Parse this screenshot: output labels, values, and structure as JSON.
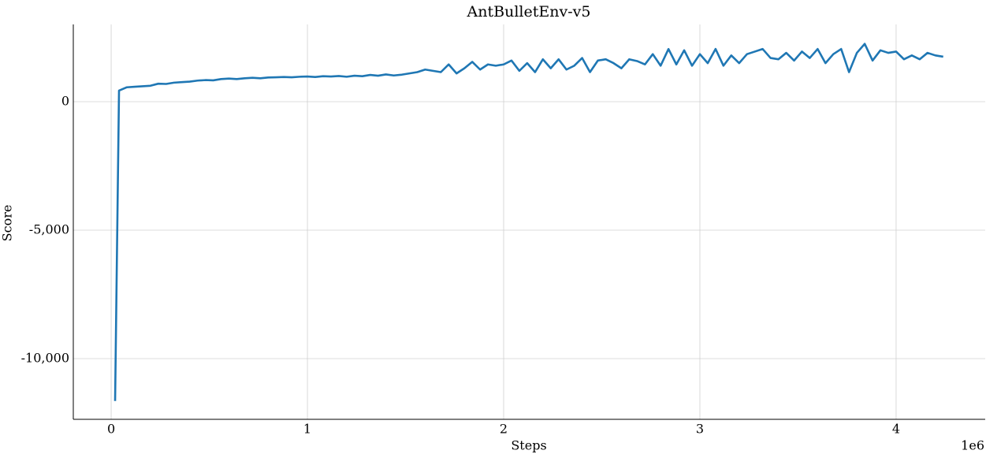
{
  "chart_data": {
    "type": "line",
    "title": "AntBulletEnv-v5",
    "x_label": "Steps",
    "y_label": "Score",
    "x_offset_label": "1e6",
    "x": [
      0.02,
      0.04,
      0.08,
      0.12,
      0.16,
      0.2,
      0.24,
      0.28,
      0.32,
      0.36,
      0.4,
      0.44,
      0.48,
      0.52,
      0.56,
      0.6,
      0.64,
      0.68,
      0.72,
      0.76,
      0.8,
      0.84,
      0.88,
      0.92,
      0.96,
      1.0,
      1.04,
      1.08,
      1.12,
      1.16,
      1.2,
      1.24,
      1.28,
      1.32,
      1.36,
      1.4,
      1.44,
      1.48,
      1.52,
      1.56,
      1.6,
      1.64,
      1.68,
      1.72,
      1.76,
      1.8,
      1.84,
      1.88,
      1.92,
      1.96,
      2.0,
      2.04,
      2.08,
      2.12,
      2.16,
      2.2,
      2.24,
      2.28,
      2.32,
      2.36,
      2.4,
      2.44,
      2.48,
      2.52,
      2.56,
      2.6,
      2.64,
      2.68,
      2.72,
      2.76,
      2.8,
      2.84,
      2.88,
      2.92,
      2.96,
      3.0,
      3.04,
      3.08,
      3.12,
      3.16,
      3.2,
      3.24,
      3.28,
      3.32,
      3.36,
      3.4,
      3.44,
      3.48,
      3.52,
      3.56,
      3.6,
      3.64,
      3.68,
      3.72,
      3.76,
      3.8,
      3.84,
      3.88,
      3.92,
      3.96,
      4.0,
      4.04,
      4.08,
      4.12,
      4.16,
      4.2,
      4.24
    ],
    "values": [
      -11650,
      430,
      560,
      580,
      600,
      620,
      700,
      690,
      740,
      760,
      780,
      820,
      840,
      830,
      880,
      900,
      880,
      910,
      930,
      910,
      940,
      950,
      960,
      950,
      970,
      980,
      960,
      990,
      980,
      1000,
      970,
      1010,
      990,
      1040,
      1010,
      1060,
      1020,
      1050,
      1100,
      1150,
      1250,
      1200,
      1150,
      1450,
      1100,
      1300,
      1550,
      1250,
      1450,
      1400,
      1450,
      1600,
      1200,
      1500,
      1150,
      1650,
      1300,
      1650,
      1250,
      1400,
      1700,
      1150,
      1600,
      1650,
      1500,
      1300,
      1650,
      1580,
      1450,
      1850,
      1400,
      2050,
      1450,
      2000,
      1400,
      1850,
      1500,
      2050,
      1400,
      1800,
      1500,
      1850,
      1950,
      2050,
      1700,
      1650,
      1900,
      1600,
      1950,
      1700,
      2050,
      1500,
      1850,
      2050,
      1150,
      1900,
      2250,
      1600,
      2000,
      1900,
      1950,
      1650,
      1800,
      1650,
      1900,
      1800,
      1750
    ],
    "color": "#1f77b4",
    "xlim": [
      -0.193,
      4.454
    ],
    "xticks": [
      0,
      1,
      2,
      3,
      4
    ],
    "ylim": [
      -12362,
      3006
    ],
    "yticks": [
      {
        "value": -10000,
        "label": "-10,000"
      },
      {
        "value": -5000,
        "label": "-5,000"
      },
      0
    ],
    "grid": true
  }
}
